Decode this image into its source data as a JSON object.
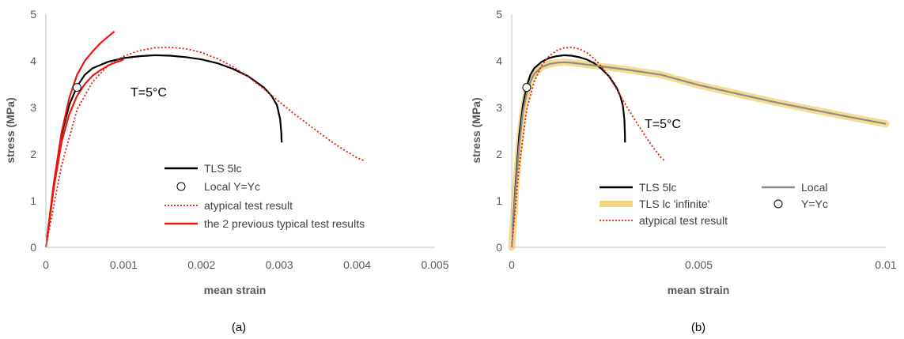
{
  "chart_data": [
    {
      "type": "line",
      "panel_label": "(a)",
      "xlabel": "mean strain",
      "ylabel": "stress (MPa)",
      "xlim": [
        0,
        0.005
      ],
      "ylim": [
        0,
        5
      ],
      "xticks": [
        0,
        0.001,
        0.002,
        0.003,
        0.004,
        0.005
      ],
      "xtick_labels": [
        "0",
        "0.001",
        "0.002",
        "0.003",
        "0.004",
        "0.005"
      ],
      "yticks": [
        0,
        1,
        2,
        3,
        4,
        5
      ],
      "ytick_labels": [
        "0",
        "1",
        "2",
        "3",
        "4",
        "5"
      ],
      "grid": false,
      "annotation": "T=5°C",
      "series": [
        {
          "name": "TLS 5lc",
          "style": "solid",
          "color": "#000000",
          "points": [
            [
              0,
              0
            ],
            [
              0.0001,
              1.3
            ],
            [
              0.0002,
              2.4
            ],
            [
              0.0003,
              3.05
            ],
            [
              0.0004,
              3.45
            ],
            [
              0.0005,
              3.7
            ],
            [
              0.0006,
              3.84
            ],
            [
              0.0008,
              3.98
            ],
            [
              0.001,
              4.06
            ],
            [
              0.0012,
              4.1
            ],
            [
              0.0014,
              4.12
            ],
            [
              0.0016,
              4.11
            ],
            [
              0.0018,
              4.08
            ],
            [
              0.002,
              4.03
            ],
            [
              0.0022,
              3.95
            ],
            [
              0.0024,
              3.83
            ],
            [
              0.0026,
              3.67
            ],
            [
              0.0028,
              3.43
            ],
            [
              0.0029,
              3.25
            ],
            [
              0.00297,
              3.05
            ],
            [
              0.00301,
              2.75
            ],
            [
              0.003025,
              2.45
            ],
            [
              0.00303,
              2.25
            ]
          ]
        },
        {
          "name": "Local Y=Yc",
          "style": "marker",
          "color": "#000000",
          "points": [
            [
              0.0004,
              3.43
            ]
          ]
        },
        {
          "name": "atypical test result",
          "style": "dotted",
          "color": "#e8190c",
          "points": [
            [
              0,
              0
            ],
            [
              0.0002,
              1.75
            ],
            [
              0.0004,
              2.95
            ],
            [
              0.0006,
              3.55
            ],
            [
              0.0008,
              3.9
            ],
            [
              0.001,
              4.1
            ],
            [
              0.0012,
              4.22
            ],
            [
              0.0014,
              4.28
            ],
            [
              0.0016,
              4.29
            ],
            [
              0.0018,
              4.26
            ],
            [
              0.002,
              4.18
            ],
            [
              0.0022,
              4.05
            ],
            [
              0.0024,
              3.88
            ],
            [
              0.0026,
              3.66
            ],
            [
              0.0028,
              3.4
            ],
            [
              0.003,
              3.12
            ],
            [
              0.0032,
              2.85
            ],
            [
              0.0034,
              2.6
            ],
            [
              0.0036,
              2.35
            ],
            [
              0.0038,
              2.12
            ],
            [
              0.004,
              1.92
            ],
            [
              0.0041,
              1.85
            ]
          ]
        },
        {
          "name": "the 2 previous typical test results",
          "style": "solid",
          "color": "#e8190c",
          "curves": [
            [
              [
                0,
                0
              ],
              [
                0.0001,
                1.35
              ],
              [
                0.0002,
                2.45
              ],
              [
                0.0003,
                3.2
              ],
              [
                0.0004,
                3.7
              ],
              [
                0.0005,
                4.0
              ],
              [
                0.0006,
                4.2
              ],
              [
                0.0007,
                4.38
              ],
              [
                0.0008,
                4.52
              ],
              [
                0.00088,
                4.63
              ]
            ],
            [
              [
                0,
                0
              ],
              [
                0.0001,
                1.25
              ],
              [
                0.0002,
                2.25
              ],
              [
                0.0003,
                2.85
              ],
              [
                0.0004,
                3.25
              ],
              [
                0.0005,
                3.5
              ],
              [
                0.0006,
                3.68
              ],
              [
                0.0007,
                3.8
              ],
              [
                0.0008,
                3.9
              ],
              [
                0.0009,
                3.97
              ],
              [
                0.001,
                4.03
              ]
            ]
          ]
        }
      ],
      "legend": {
        "position": "bottom-center",
        "entries": [
          "TLS 5lc",
          "Local Y=Yc",
          "atypical test result",
          "the 2 previous typical test results"
        ]
      }
    },
    {
      "type": "line",
      "panel_label": "(b)",
      "xlabel": "mean strain",
      "ylabel": "stress (MPa)",
      "xlim": [
        0,
        0.01
      ],
      "ylim": [
        0,
        5
      ],
      "xticks": [
        0,
        0.005,
        0.01
      ],
      "xtick_labels": [
        "0",
        "0.005",
        "0.01"
      ],
      "yticks": [
        0,
        1,
        2,
        3,
        4,
        5
      ],
      "ytick_labels": [
        "0",
        "1",
        "2",
        "3",
        "4",
        "5"
      ],
      "grid": false,
      "annotation": "T=5°C",
      "series": [
        {
          "name": "TLS 5lc",
          "style": "solid",
          "color": "#000000",
          "points": [
            [
              0,
              0
            ],
            [
              0.0001,
              1.3
            ],
            [
              0.0002,
              2.4
            ],
            [
              0.0003,
              3.05
            ],
            [
              0.0004,
              3.45
            ],
            [
              0.0005,
              3.7
            ],
            [
              0.0006,
              3.84
            ],
            [
              0.0008,
              3.98
            ],
            [
              0.001,
              4.06
            ],
            [
              0.0012,
              4.1
            ],
            [
              0.0014,
              4.12
            ],
            [
              0.0016,
              4.11
            ],
            [
              0.0018,
              4.08
            ],
            [
              0.002,
              4.03
            ],
            [
              0.0022,
              3.95
            ],
            [
              0.0024,
              3.83
            ],
            [
              0.0026,
              3.67
            ],
            [
              0.0028,
              3.43
            ],
            [
              0.0029,
              3.25
            ],
            [
              0.00297,
              3.05
            ],
            [
              0.00301,
              2.75
            ],
            [
              0.003025,
              2.45
            ],
            [
              0.00303,
              2.25
            ]
          ]
        },
        {
          "name": "TLS lc 'infinite'",
          "style": "band",
          "color": "#f5d680",
          "points": [
            [
              0,
              0
            ],
            [
              0.0001,
              1.2
            ],
            [
              0.0002,
              2.2
            ],
            [
              0.0003,
              2.9
            ],
            [
              0.0004,
              3.3
            ],
            [
              0.0005,
              3.55
            ],
            [
              0.0006,
              3.72
            ],
            [
              0.0008,
              3.87
            ],
            [
              0.001,
              3.93
            ],
            [
              0.0012,
              3.96
            ],
            [
              0.0014,
              3.97
            ],
            [
              0.0016,
              3.96
            ],
            [
              0.002,
              3.92
            ],
            [
              0.003,
              3.82
            ],
            [
              0.004,
              3.7
            ],
            [
              0.005,
              3.48
            ],
            [
              0.006,
              3.3
            ],
            [
              0.007,
              3.12
            ],
            [
              0.008,
              2.96
            ],
            [
              0.009,
              2.8
            ],
            [
              0.01,
              2.65
            ]
          ]
        },
        {
          "name": "Local",
          "style": "solid",
          "color": "#8c8c8c",
          "points": [
            [
              0,
              0
            ],
            [
              0.0001,
              1.2
            ],
            [
              0.0002,
              2.2
            ],
            [
              0.0003,
              2.9
            ],
            [
              0.0004,
              3.3
            ],
            [
              0.0005,
              3.55
            ],
            [
              0.0006,
              3.72
            ],
            [
              0.0008,
              3.87
            ],
            [
              0.001,
              3.93
            ],
            [
              0.0012,
              3.96
            ],
            [
              0.0014,
              3.97
            ],
            [
              0.0016,
              3.96
            ],
            [
              0.002,
              3.92
            ],
            [
              0.003,
              3.82
            ],
            [
              0.004,
              3.7
            ],
            [
              0.005,
              3.48
            ],
            [
              0.006,
              3.3
            ],
            [
              0.007,
              3.12
            ],
            [
              0.008,
              2.96
            ],
            [
              0.009,
              2.8
            ],
            [
              0.01,
              2.65
            ]
          ]
        },
        {
          "name": "Y=Yc",
          "style": "marker",
          "color": "#000000",
          "points": [
            [
              0.0004,
              3.43
            ]
          ]
        },
        {
          "name": "atypical test result",
          "style": "dotted",
          "color": "#e8190c",
          "points": [
            [
              0,
              0
            ],
            [
              0.0002,
              1.75
            ],
            [
              0.0004,
              2.95
            ],
            [
              0.0006,
              3.55
            ],
            [
              0.0008,
              3.9
            ],
            [
              0.001,
              4.1
            ],
            [
              0.0012,
              4.22
            ],
            [
              0.0014,
              4.28
            ],
            [
              0.0016,
              4.29
            ],
            [
              0.0018,
              4.26
            ],
            [
              0.002,
              4.18
            ],
            [
              0.0022,
              4.05
            ],
            [
              0.0024,
              3.88
            ],
            [
              0.0026,
              3.66
            ],
            [
              0.0028,
              3.4
            ],
            [
              0.003,
              3.12
            ],
            [
              0.0032,
              2.85
            ],
            [
              0.0034,
              2.6
            ],
            [
              0.0036,
              2.35
            ],
            [
              0.0038,
              2.12
            ],
            [
              0.004,
              1.92
            ],
            [
              0.0041,
              1.85
            ]
          ]
        }
      ],
      "legend": {
        "position": "bottom-center",
        "entries": [
          "TLS 5lc",
          "Local",
          "TLS lc 'infinite'",
          "Y=Yc",
          "atypical test result"
        ]
      }
    }
  ]
}
